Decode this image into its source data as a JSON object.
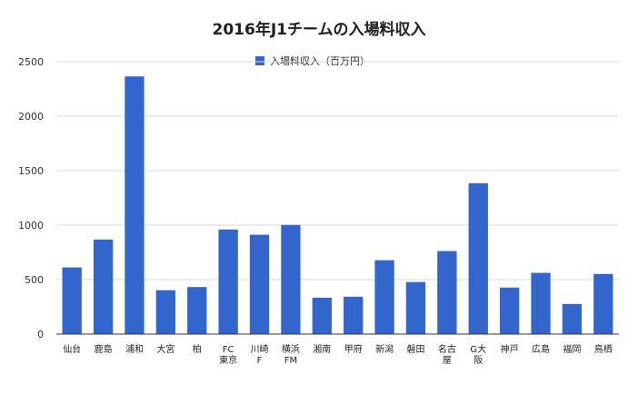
{
  "chart_data": {
    "type": "bar",
    "title": "2016年J1チームの入場料収入",
    "legend_position": "top-center",
    "grid": true,
    "series": [
      {
        "name": "入場料収入（百万円）",
        "color": "#3366cc",
        "values": [
          612,
          868,
          2365,
          403,
          432,
          960,
          912,
          1002,
          334,
          343,
          678,
          478,
          762,
          1385,
          427,
          562,
          276,
          552
        ]
      }
    ],
    "categories": [
      "仙台",
      "鹿島",
      "浦和",
      "大宮",
      "柏",
      "FC東京",
      "川崎F",
      "横浜FM",
      "湘南",
      "甲府",
      "新潟",
      "磐田",
      "名古屋",
      "G大阪",
      "神戸",
      "広島",
      "福岡",
      "鳥栖"
    ],
    "ylim": [
      0,
      2500
    ],
    "yticks": [
      0,
      500,
      1000,
      1500,
      2000,
      2500
    ],
    "xlabel": "",
    "ylabel": ""
  }
}
